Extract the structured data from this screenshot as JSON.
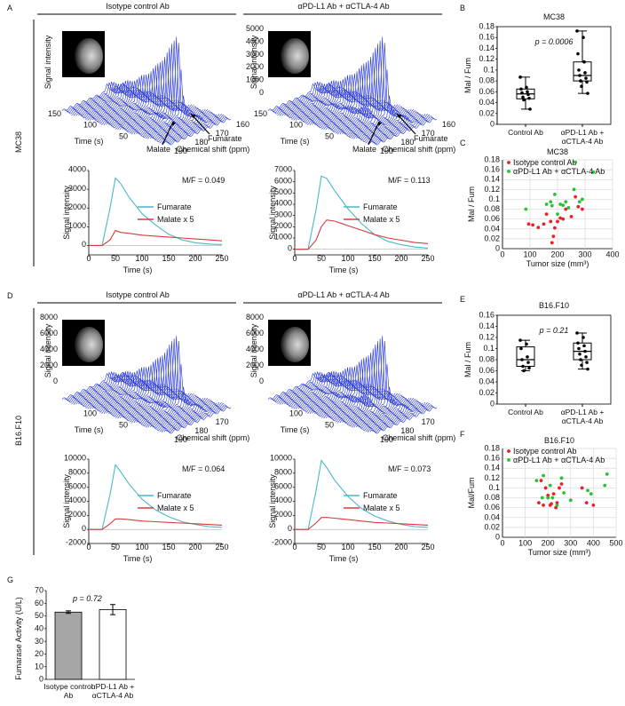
{
  "figure": {
    "letters": [
      "A",
      "B",
      "C",
      "D",
      "E",
      "F",
      "G"
    ],
    "rows": [
      {
        "label": "MC38",
        "columns": [
          {
            "title": "Isotype control Ab",
            "waterfall": {
              "y_label": "Signal intensity",
              "intensity_ticks": [],
              "time_ticks": [
                150,
                100,
                50
              ],
              "time_label": "Time (s)",
              "shift_ticks": [
                190,
                180,
                170,
                160
              ],
              "shift_label": "Chemical shift (ppm)",
              "arrows": [
                "Malate",
                "Fumarate"
              ]
            }
          },
          {
            "title": "αPD-L1 Ab + αCTLA-4 Ab",
            "waterfall": {
              "y_label": "Signal intensity",
              "intensity_ticks": [
                0,
                1000,
                2000,
                3000,
                4000,
                5000
              ],
              "time_ticks": [
                150,
                100,
                50
              ],
              "time_label": "Time (s)",
              "shift_ticks": [
                190,
                180,
                170,
                160
              ],
              "shift_label": "Chemical shift (ppm)",
              "arrows": [
                "Malate",
                "Fumarate"
              ]
            }
          }
        ]
      },
      {
        "label": "B16.F10",
        "columns": [
          {
            "title": "Isotype control Ab",
            "waterfall": {
              "y_label": "Signal intensity",
              "intensity_ticks": [
                0,
                2000,
                4000,
                6000,
                8000
              ],
              "time_ticks": [
                100,
                50
              ],
              "time_label": "Time (s)",
              "shift_ticks": [
                190,
                180,
                170
              ],
              "shift_label": "Chemical shift (ppm)",
              "arrows": []
            }
          },
          {
            "title": "αPD-L1 Ab + αCTLA-4 Ab",
            "waterfall": {
              "y_label": "Signal intensity",
              "intensity_ticks": [
                0,
                2000,
                4000,
                6000,
                8000
              ],
              "time_ticks": [
                100,
                50
              ],
              "time_label": "Time (s)",
              "shift_ticks": [
                190,
                180,
                170
              ],
              "shift_label": "Chemical shift (ppm)",
              "arrows": []
            }
          }
        ]
      }
    ]
  },
  "chart_data": [
    {
      "type": "line",
      "annotation": "M/F = 0.049",
      "x_label": "Time (s)",
      "y_label": "Signal intensity",
      "x": [
        0,
        25,
        40,
        50,
        60,
        75,
        100,
        125,
        150,
        175,
        200,
        225,
        250
      ],
      "xlim": [
        0,
        250
      ],
      "xticks": [
        0,
        50,
        100,
        150,
        200,
        250
      ],
      "ylim": [
        -500,
        4000
      ],
      "yticks": [
        0,
        1000,
        2000,
        3000,
        4000
      ],
      "series": [
        {
          "name": "Fumarate",
          "color": "#4bb8c8",
          "values": [
            0,
            0,
            2000,
            3600,
            3300,
            2600,
            1700,
            1100,
            600,
            300,
            150,
            80,
            50
          ]
        },
        {
          "name": "Malate x 5",
          "color": "#d63b3b",
          "values": [
            0,
            0,
            300,
            800,
            700,
            650,
            550,
            500,
            450,
            400,
            350,
            300,
            250
          ]
        }
      ]
    },
    {
      "type": "line",
      "annotation": "M/F = 0.113",
      "x_label": "Time (s)",
      "y_label": "Signal intensity",
      "x": [
        0,
        25,
        40,
        50,
        60,
        75,
        100,
        125,
        150,
        175,
        200,
        225,
        250
      ],
      "xlim": [
        0,
        250
      ],
      "xticks": [
        0,
        50,
        100,
        150,
        200,
        250
      ],
      "ylim": [
        -500,
        7000
      ],
      "yticks": [
        0,
        1000,
        2000,
        3000,
        4000,
        5000,
        6000,
        7000
      ],
      "series": [
        {
          "name": "Fumarate",
          "color": "#4bb8c8",
          "values": [
            0,
            0,
            3500,
            6500,
            6300,
            5200,
            3600,
            2300,
            1300,
            700,
            400,
            200,
            100
          ]
        },
        {
          "name": "Malate x 5",
          "color": "#d63b3b",
          "values": [
            0,
            0,
            800,
            2000,
            2600,
            2500,
            2100,
            1700,
            1300,
            1000,
            800,
            600,
            500
          ]
        }
      ]
    },
    {
      "type": "line",
      "annotation": "M/F = 0.064",
      "x_label": "Time (s)",
      "y_label": "Signal intensity",
      "x": [
        0,
        25,
        40,
        50,
        60,
        75,
        100,
        125,
        150,
        175,
        200,
        225,
        250
      ],
      "xlim": [
        0,
        250
      ],
      "xticks": [
        0,
        50,
        100,
        150,
        200,
        250
      ],
      "ylim": [
        -2000,
        10000
      ],
      "yticks": [
        -2000,
        0,
        2000,
        4000,
        6000,
        8000,
        10000
      ],
      "series": [
        {
          "name": "Fumarate",
          "color": "#4bb8c8",
          "values": [
            0,
            0,
            5000,
            9200,
            8200,
            6500,
            4300,
            2800,
            1800,
            1100,
            700,
            400,
            300
          ]
        },
        {
          "name": "Malate x 5",
          "color": "#d63b3b",
          "values": [
            0,
            0,
            800,
            1500,
            1500,
            1400,
            1200,
            1100,
            1000,
            900,
            800,
            700,
            600
          ]
        }
      ]
    },
    {
      "type": "line",
      "annotation": "M/F = 0.073",
      "x_label": "Time (s)",
      "y_label": "Signal intensity",
      "x": [
        0,
        25,
        40,
        50,
        60,
        75,
        100,
        125,
        150,
        175,
        200,
        225,
        250
      ],
      "xlim": [
        0,
        250
      ],
      "xticks": [
        0,
        50,
        100,
        150,
        200,
        250
      ],
      "ylim": [
        -2000,
        10000
      ],
      "yticks": [
        -2000,
        0,
        2000,
        4000,
        6000,
        8000,
        10000
      ],
      "series": [
        {
          "name": "Fumarate",
          "color": "#4bb8c8",
          "values": [
            0,
            0,
            5500,
            9800,
            8800,
            7000,
            4700,
            3000,
            1900,
            1200,
            700,
            400,
            300
          ]
        },
        {
          "name": "Malate x 5",
          "color": "#d63b3b",
          "values": [
            0,
            0,
            900,
            1700,
            1700,
            1600,
            1400,
            1200,
            1000,
            900,
            800,
            700,
            600
          ]
        }
      ]
    },
    {
      "type": "box",
      "title": "MC38",
      "annotation": "p = 0.0006",
      "y_label": "Mal / Fum",
      "categories": [
        "Control Ab",
        "αPD-L1 Ab + αCTLA-4 Ab"
      ],
      "ylim": [
        0,
        0.18
      ],
      "yticks": [
        0,
        0.02,
        0.04,
        0.06,
        0.08,
        0.1,
        0.12,
        0.14,
        0.16,
        0.18
      ],
      "boxes": [
        {
          "min": 0.028,
          "q1": 0.047,
          "median": 0.056,
          "q3": 0.065,
          "max": 0.087,
          "points": [
            0.087,
            0.068,
            0.065,
            0.06,
            0.058,
            0.055,
            0.05,
            0.048,
            0.045,
            0.028
          ]
        },
        {
          "min": 0.057,
          "q1": 0.08,
          "median": 0.09,
          "q3": 0.115,
          "max": 0.172,
          "points": [
            0.172,
            0.16,
            0.13,
            0.115,
            0.1,
            0.095,
            0.09,
            0.085,
            0.08,
            0.078,
            0.07,
            0.057
          ]
        }
      ]
    },
    {
      "type": "scatter",
      "title": "MC38",
      "x_label": "Tumor size (mm³)",
      "y_label": "Mal / Fum",
      "xlim": [
        0,
        400
      ],
      "xticks": [
        0,
        100,
        200,
        300,
        400
      ],
      "ylim": [
        0,
        0.18
      ],
      "yticks": [
        0,
        0.02,
        0.04,
        0.06,
        0.08,
        0.1,
        0.12,
        0.14,
        0.16,
        0.18
      ],
      "grid": true,
      "series": [
        {
          "name": "Isotype control Ab",
          "color": "#e8202a",
          "x": [
            95,
            110,
            130,
            150,
            160,
            175,
            180,
            185,
            190,
            200,
            210,
            220,
            230,
            250,
            265,
            275,
            290
          ],
          "values": [
            0.05,
            0.048,
            0.043,
            0.05,
            0.07,
            0.055,
            0.012,
            0.025,
            0.042,
            0.055,
            0.062,
            0.06,
            0.08,
            0.065,
            0.105,
            0.085,
            0.08
          ]
        },
        {
          "name": "αPD-L1 Ab + αCTLA-4 Ab",
          "color": "#27c22f",
          "x": [
            85,
            160,
            175,
            180,
            190,
            200,
            210,
            220,
            230,
            240,
            260,
            265,
            280,
            290,
            330
          ],
          "values": [
            0.08,
            0.09,
            0.095,
            0.087,
            0.11,
            0.07,
            0.09,
            0.088,
            0.095,
            0.083,
            0.12,
            0.175,
            0.095,
            0.1,
            0.155
          ]
        }
      ]
    },
    {
      "type": "box",
      "title": "B16.F10",
      "annotation": "p = 0.21",
      "y_label": "Mal / Fum",
      "categories": [
        "Control Ab",
        "αPD-L1 Ab + αCTLA-4 Ab"
      ],
      "ylim": [
        0,
        0.16
      ],
      "yticks": [
        0,
        0.02,
        0.04,
        0.06,
        0.08,
        0.1,
        0.12,
        0.14,
        0.16
      ],
      "boxes": [
        {
          "min": 0.06,
          "q1": 0.068,
          "median": 0.08,
          "q3": 0.103,
          "max": 0.115,
          "points": [
            0.115,
            0.108,
            0.1,
            0.085,
            0.08,
            0.075,
            0.068,
            0.065,
            0.06
          ]
        },
        {
          "min": 0.063,
          "q1": 0.08,
          "median": 0.095,
          "q3": 0.11,
          "max": 0.128,
          "points": [
            0.128,
            0.12,
            0.11,
            0.105,
            0.1,
            0.095,
            0.09,
            0.085,
            0.08,
            0.075,
            0.07,
            0.063
          ]
        }
      ]
    },
    {
      "type": "scatter",
      "title": "B16.F10",
      "x_label": "Tumor size (mm³)",
      "y_label": "Mal/Fum",
      "xlim": [
        0,
        500
      ],
      "xticks": [
        0,
        100,
        200,
        300,
        400,
        500
      ],
      "ylim": [
        0,
        0.18
      ],
      "yticks": [
        0,
        0.02,
        0.04,
        0.06,
        0.08,
        0.1,
        0.12,
        0.14,
        0.16,
        0.18
      ],
      "grid": true,
      "series": [
        {
          "name": "Isotype control Ab",
          "color": "#e8202a",
          "x": [
            160,
            170,
            180,
            190,
            200,
            210,
            215,
            225,
            235,
            240,
            250,
            260,
            350,
            370,
            400
          ],
          "values": [
            0.07,
            0.115,
            0.065,
            0.1,
            0.085,
            0.065,
            0.068,
            0.088,
            0.06,
            0.07,
            0.1,
            0.108,
            0.1,
            0.07,
            0.065
          ]
        },
        {
          "name": "αPD-L1 Ab + αCTLA-4 Ab",
          "color": "#27c22f",
          "x": [
            150,
            175,
            180,
            200,
            210,
            220,
            240,
            260,
            270,
            300,
            375,
            390,
            450,
            460
          ],
          "values": [
            0.115,
            0.08,
            0.125,
            0.08,
            0.105,
            0.08,
            0.065,
            0.12,
            0.09,
            0.075,
            0.095,
            0.088,
            0.105,
            0.128
          ]
        }
      ]
    },
    {
      "type": "bar",
      "annotation": "p = 0.72",
      "y_label": "Fumarase Activity (U/L)",
      "categories": [
        "Isotype control Ab",
        "αPD-L1 Ab + αCTLA-4 Ab"
      ],
      "values": [
        53,
        55
      ],
      "errors": [
        1,
        4
      ],
      "colors": [
        "#a6a6a6",
        "#ffffff"
      ],
      "ylim": [
        0,
        70
      ],
      "yticks": [
        0,
        10,
        20,
        30,
        40,
        50,
        60,
        70
      ]
    }
  ]
}
